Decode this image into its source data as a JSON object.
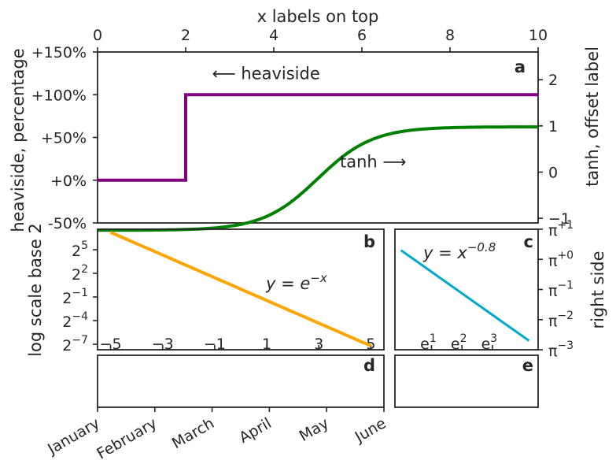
{
  "chart_data": [
    {
      "panel": "a",
      "type": "line",
      "xlabel_top": "x labels on top",
      "xlim": [
        0,
        10
      ],
      "x_ticks": [
        "0",
        "2",
        "4",
        "6",
        "8",
        "10"
      ],
      "ylabel_left": "heaviside, percentage",
      "ylim_left": [
        -0.5,
        1.5
      ],
      "y_ticks_left": [
        "+150%",
        "+100%",
        "+50%",
        "+0%",
        "-50%"
      ],
      "ylabel_right": "tanh, offset label",
      "ylim_right": [
        -1.1,
        2.6
      ],
      "y_ticks_right": [
        "2",
        "1",
        "0",
        "−1"
      ],
      "annotations": [
        {
          "text": "⟵ heaviside",
          "x": 2.6,
          "y": 1.18
        },
        {
          "text": "tanh ⟶",
          "x": 5.5,
          "y": 0.15
        }
      ],
      "series": [
        {
          "color": "#800080",
          "axis": "left",
          "x": [
            0,
            2,
            2,
            10
          ],
          "y": [
            0,
            0,
            1,
            1
          ]
        },
        {
          "color": "#008000",
          "axis": "right",
          "function": "tanh",
          "x_range": [
            0,
            10
          ],
          "x0": 5,
          "scale": 0.8,
          "amplitude": 1.12,
          "offset": -0.14
        }
      ]
    },
    {
      "panel": "b",
      "type": "line",
      "ylabel": "log scale base 2",
      "yscale": "log2",
      "y_ticks": [
        "2⁵",
        "2²",
        "2⁻¹",
        "2⁻⁴",
        "2⁻⁷"
      ],
      "x_ticks": [
        "−5",
        "−3",
        "−1",
        "1",
        "3",
        "5"
      ],
      "xlim": [
        -5.5,
        5.5
      ],
      "annotation": "y = e^{−x}",
      "series": [
        {
          "color": "#FFA500",
          "x": [
            -5,
            5
          ],
          "y": [
            148.41,
            0.006738
          ]
        }
      ]
    },
    {
      "panel": "c",
      "type": "line",
      "ylabel": "right side",
      "yscale": "log_pi",
      "y_ticks": [
        "π⁺¹",
        "π⁺⁰",
        "π⁻¹",
        "π⁻²",
        "π⁻³"
      ],
      "x_ticks": [
        "e¹",
        "e²",
        "e³"
      ],
      "xscale": "log_e",
      "annotation": "y = x^{−0.8}",
      "series": [
        {
          "color": "#00A8CC",
          "log_e_x": [
            0,
            4.2
          ],
          "log_pi_y": [
            0.3,
            -2.7
          ]
        }
      ]
    },
    {
      "panel": "d",
      "type": "line",
      "x_ticks": [
        "January",
        "February",
        "March",
        "April",
        "May",
        "June"
      ],
      "series": []
    },
    {
      "panel": "e",
      "type": "line",
      "series": []
    }
  ]
}
